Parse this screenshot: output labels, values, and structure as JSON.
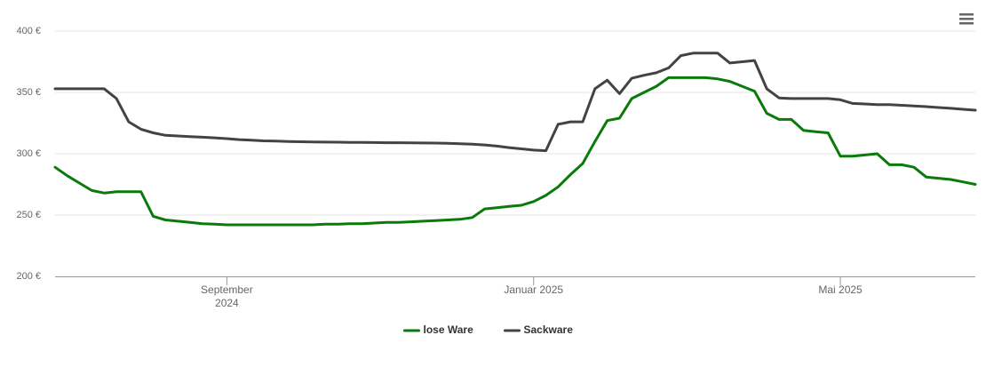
{
  "chart_data": {
    "type": "line",
    "categories": [
      null,
      null,
      null,
      null,
      null,
      null,
      null,
      null,
      null,
      null,
      null,
      null,
      null,
      null,
      "September 2024",
      null,
      null,
      null,
      null,
      null,
      null,
      null,
      null,
      null,
      null,
      null,
      null,
      null,
      null,
      null,
      null,
      null,
      null,
      null,
      null,
      null,
      null,
      null,
      null,
      "Januar 2025",
      null,
      null,
      null,
      null,
      null,
      null,
      null,
      null,
      null,
      null,
      null,
      null,
      null,
      null,
      null,
      null,
      null,
      null,
      null,
      null,
      null,
      null,
      null,
      null,
      "Mai 2025",
      null,
      null,
      null,
      null,
      null,
      null,
      null,
      null,
      null,
      null,
      null
    ],
    "series": [
      {
        "name": "lose Ware",
        "color": "#0a7a0a",
        "values": [
          289,
          282,
          276,
          270,
          268,
          269,
          269,
          269,
          249,
          246,
          245,
          244,
          243,
          242.5,
          242,
          242,
          242,
          242,
          242,
          242,
          242,
          242,
          242.5,
          242.5,
          243,
          243,
          243.5,
          244,
          244,
          244.5,
          245,
          245.5,
          246,
          246.5,
          248,
          255,
          256,
          257,
          258,
          261,
          266,
          273,
          283,
          292,
          310,
          327,
          329,
          345,
          350,
          355,
          362,
          362,
          362,
          362,
          361,
          359,
          355,
          351,
          333,
          328,
          328,
          319,
          318,
          317,
          298,
          298,
          299,
          300,
          291,
          291,
          289,
          281,
          280,
          279,
          277,
          275
        ]
      },
      {
        "name": "Sackware",
        "color": "#434343",
        "values": [
          353,
          353,
          353,
          353,
          353,
          345,
          326,
          320,
          317,
          315,
          314.5,
          314,
          313.5,
          313,
          312.3,
          311.5,
          311,
          310.5,
          310.3,
          310,
          309.8,
          309.6,
          309.5,
          309.4,
          309.3,
          309.2,
          309.1,
          309,
          309,
          308.9,
          308.8,
          308.7,
          308.5,
          308.2,
          307.8,
          307.2,
          306.2,
          305,
          304,
          303,
          302.5,
          324,
          326,
          326,
          353,
          360,
          349,
          361.5,
          364,
          366,
          370,
          380,
          382,
          382,
          382,
          374,
          375,
          376,
          353,
          345.5,
          345,
          345,
          345,
          345,
          344,
          341,
          340.6,
          340,
          340,
          339.5,
          339,
          338.4,
          337.7,
          337,
          336.2,
          335.5
        ]
      }
    ],
    "ylim": [
      200,
      400
    ],
    "yticks": [
      {
        "value": 200,
        "label": "200 €"
      },
      {
        "value": 250,
        "label": "250 €"
      },
      {
        "value": 300,
        "label": "300 €"
      },
      {
        "value": 350,
        "label": "350 €"
      },
      {
        "value": 400,
        "label": "400 €"
      }
    ],
    "grid": true,
    "legend": "bottom"
  }
}
